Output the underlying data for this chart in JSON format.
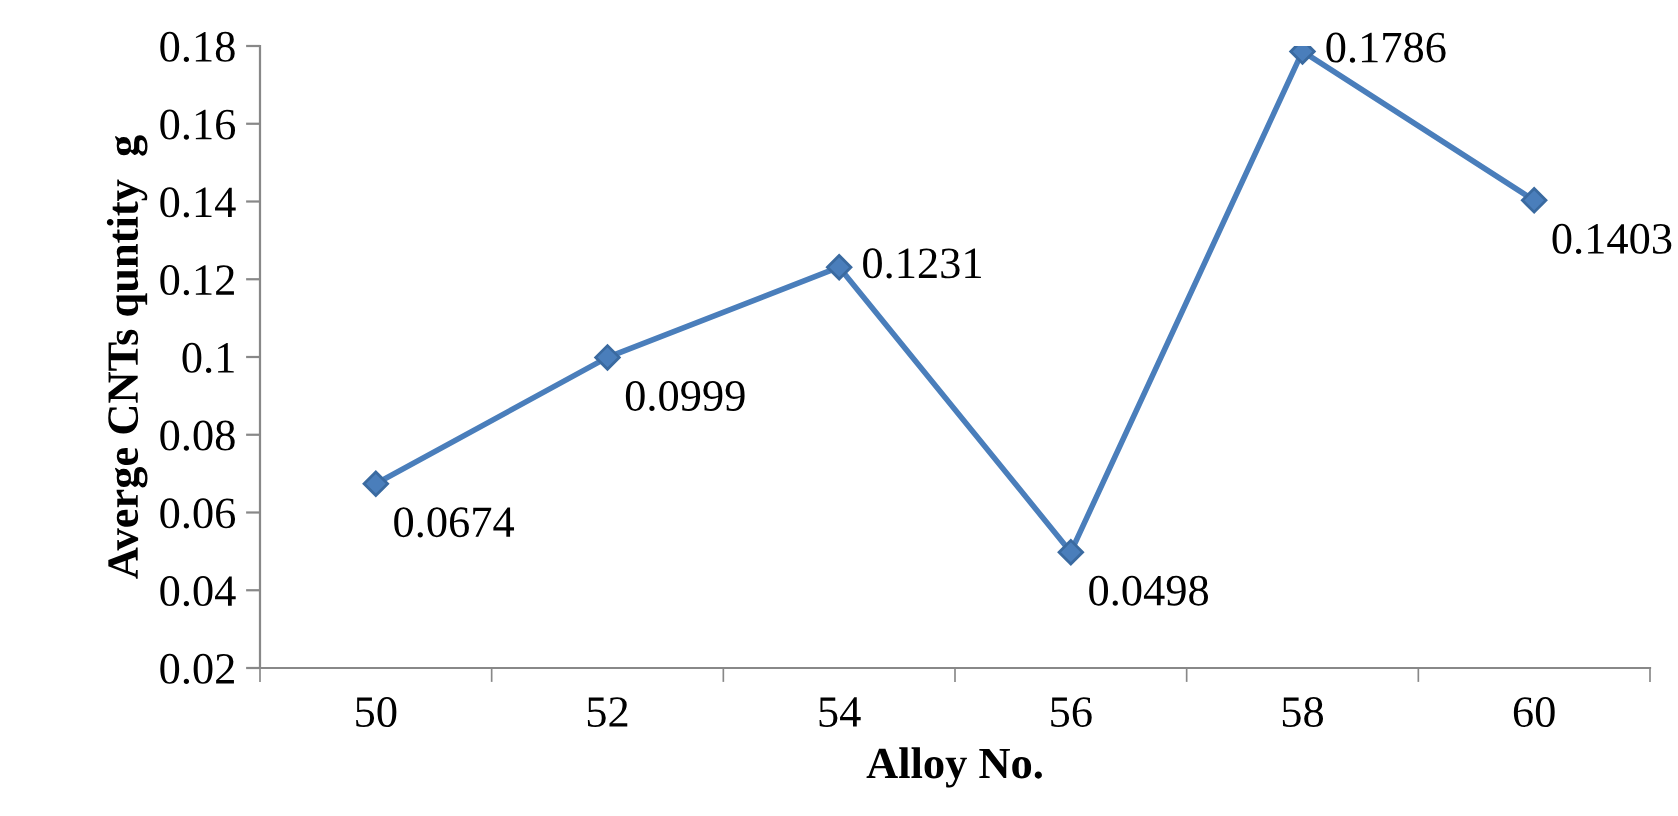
{
  "chart_data": {
    "type": "line",
    "xlabel": "Alloy No.",
    "ylabel": "Averge CNTs quntity  g",
    "categories": [
      "50",
      "52",
      "54",
      "56",
      "58",
      "60"
    ],
    "series": [
      {
        "color": "#4a7ebb",
        "values": [
          0.0674,
          0.0999,
          0.1231,
          0.0498,
          0.1786,
          0.1403
        ]
      }
    ],
    "data_labels": true,
    "marker": "diamond",
    "line_style": "solid",
    "grid": false,
    "legend": false,
    "ylim": [
      0.02,
      0.18
    ],
    "yticks": [
      {
        "value": 0.02,
        "label": "0.02"
      },
      {
        "value": 0.04,
        "label": "0.04"
      },
      {
        "value": 0.06,
        "label": "0.06"
      },
      {
        "value": 0.08,
        "label": "0.08"
      },
      {
        "value": 0.1,
        "label": "0.1"
      },
      {
        "value": 0.12,
        "label": "0.12"
      },
      {
        "value": 0.14,
        "label": "0.14"
      },
      {
        "value": 0.16,
        "label": "0.16"
      },
      {
        "value": 0.18,
        "label": "0.18"
      }
    ]
  }
}
